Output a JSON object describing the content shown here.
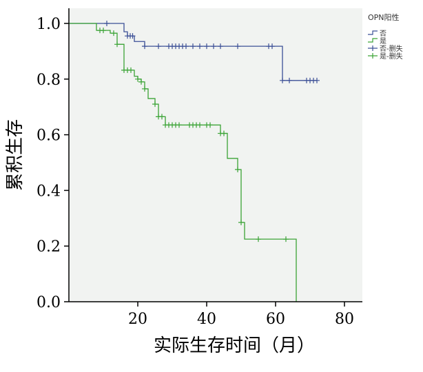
{
  "chart_data": {
    "type": "line",
    "subtype": "kaplan-meier",
    "xlabel": "实际生存时间（月）",
    "ylabel": "累积生存",
    "xlim": [
      0,
      85
    ],
    "ylim": [
      0,
      1.0
    ],
    "xticks": [
      20,
      40,
      60,
      80
    ],
    "yticks": [
      0.0,
      0.2,
      0.4,
      0.6,
      0.8,
      1.0
    ],
    "ytick_labels": [
      "0.0",
      "0.2",
      "0.4",
      "0.6",
      "0.8",
      "1.0"
    ],
    "legend": {
      "title": "OPN阳性",
      "position": "top-right",
      "entries": [
        {
          "label": "否",
          "kind": "step",
          "color": "#3b4f96"
        },
        {
          "label": "是",
          "kind": "step",
          "color": "#3aa335"
        },
        {
          "label": "否-删失",
          "kind": "censor",
          "color": "#3b4f96"
        },
        {
          "label": "是-删失",
          "kind": "censor",
          "color": "#3aa335"
        }
      ]
    },
    "series": [
      {
        "name": "否",
        "color": "#3b4f96",
        "steps": [
          [
            0,
            1.0
          ],
          [
            16,
            0.97
          ],
          [
            17,
            0.955
          ],
          [
            19,
            0.935
          ],
          [
            22,
            0.918
          ],
          [
            62,
            0.795
          ],
          [
            72,
            0.795
          ]
        ],
        "censored": [
          [
            11,
            1.0
          ],
          [
            17,
            0.955
          ],
          [
            17.8,
            0.955
          ],
          [
            18.5,
            0.955
          ],
          [
            22,
            0.918
          ],
          [
            26,
            0.918
          ],
          [
            29,
            0.918
          ],
          [
            30,
            0.918
          ],
          [
            31,
            0.918
          ],
          [
            32,
            0.918
          ],
          [
            33,
            0.918
          ],
          [
            34,
            0.918
          ],
          [
            36,
            0.918
          ],
          [
            38,
            0.918
          ],
          [
            40,
            0.918
          ],
          [
            42,
            0.918
          ],
          [
            44,
            0.918
          ],
          [
            49,
            0.918
          ],
          [
            58,
            0.918
          ],
          [
            59,
            0.918
          ],
          [
            62,
            0.795
          ],
          [
            64,
            0.795
          ],
          [
            69,
            0.795
          ],
          [
            70,
            0.795
          ],
          [
            71,
            0.795
          ],
          [
            72,
            0.795
          ]
        ]
      },
      {
        "name": "是",
        "color": "#3aa335",
        "steps": [
          [
            0,
            1.0
          ],
          [
            8,
            0.975
          ],
          [
            12,
            0.965
          ],
          [
            14,
            0.925
          ],
          [
            16,
            0.832
          ],
          [
            19,
            0.81
          ],
          [
            20,
            0.8
          ],
          [
            21,
            0.79
          ],
          [
            22,
            0.765
          ],
          [
            23,
            0.73
          ],
          [
            25,
            0.71
          ],
          [
            26,
            0.665
          ],
          [
            28,
            0.635
          ],
          [
            44,
            0.605
          ],
          [
            46,
            0.515
          ],
          [
            49,
            0.475
          ],
          [
            50,
            0.285
          ],
          [
            51,
            0.225
          ],
          [
            66,
            0.225
          ],
          [
            66,
            0.0
          ]
        ],
        "censored": [
          [
            9,
            0.975
          ],
          [
            10,
            0.975
          ],
          [
            13,
            0.965
          ],
          [
            14,
            0.925
          ],
          [
            16,
            0.832
          ],
          [
            17,
            0.832
          ],
          [
            18,
            0.832
          ],
          [
            20,
            0.8
          ],
          [
            21,
            0.79
          ],
          [
            22,
            0.765
          ],
          [
            25,
            0.71
          ],
          [
            26,
            0.665
          ],
          [
            27,
            0.665
          ],
          [
            28,
            0.635
          ],
          [
            29,
            0.635
          ],
          [
            30,
            0.635
          ],
          [
            31,
            0.635
          ],
          [
            32,
            0.635
          ],
          [
            35,
            0.635
          ],
          [
            36,
            0.635
          ],
          [
            37,
            0.635
          ],
          [
            38,
            0.635
          ],
          [
            40,
            0.635
          ],
          [
            41,
            0.635
          ],
          [
            44,
            0.605
          ],
          [
            45,
            0.605
          ],
          [
            49,
            0.475
          ],
          [
            50,
            0.285
          ],
          [
            55,
            0.225
          ],
          [
            63,
            0.225
          ]
        ]
      }
    ]
  }
}
